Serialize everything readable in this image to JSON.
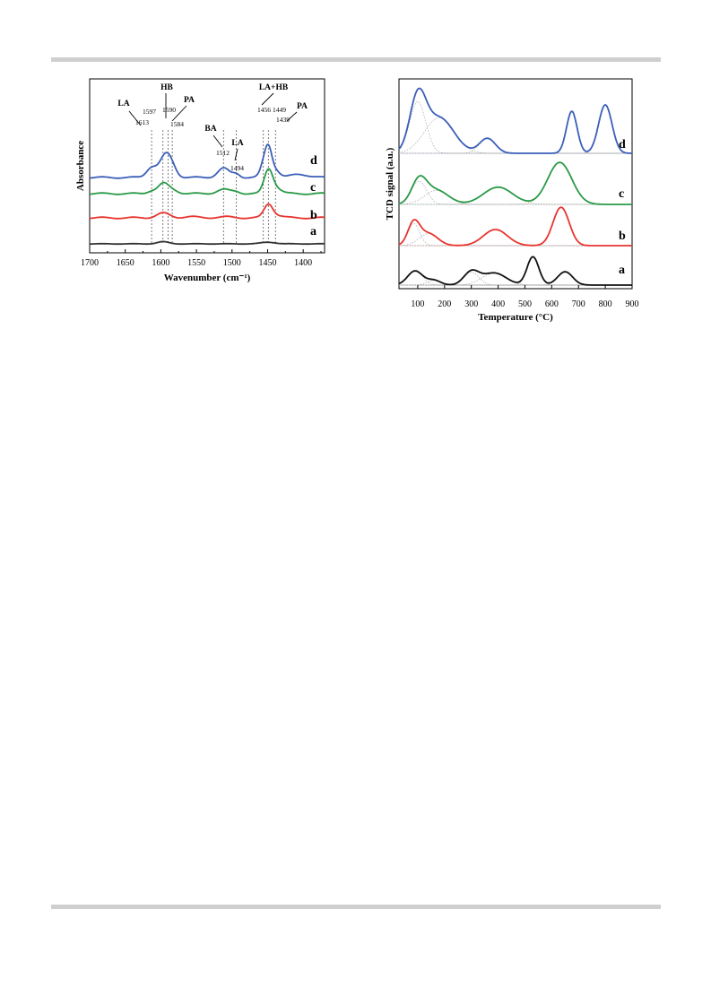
{
  "chart_data": [
    {
      "type": "line",
      "xlabel": "Wavenumber (cm⁻¹)",
      "ylabel": "Absorbance",
      "xlim": [
        1700,
        1370
      ],
      "x_reversed": true,
      "x_ticks": [
        1700,
        1650,
        1600,
        1550,
        1500,
        1450,
        1400
      ],
      "series": [
        {
          "name": "a",
          "color": "#333333",
          "offset": 0.0,
          "peaks": [
            [
              1597,
              0.45,
              8
            ],
            [
              1449,
              0.35,
              10
            ]
          ]
        },
        {
          "name": "b",
          "color": "#e8352f",
          "offset": 2.5,
          "peaks": [
            [
              1597,
              1.0,
              9
            ],
            [
              1560,
              0.25,
              10
            ],
            [
              1510,
              0.2,
              12
            ],
            [
              1449,
              2.6,
              6
            ],
            [
              1440,
              0.6,
              10
            ]
          ]
        },
        {
          "name": "c",
          "color": "#2a9a47",
          "offset": 5.0,
          "peaks": [
            [
              1613,
              0.6,
              6
            ],
            [
              1597,
              2.0,
              7
            ],
            [
              1584,
              0.8,
              8
            ],
            [
              1512,
              0.9,
              9
            ],
            [
              1494,
              0.4,
              6
            ],
            [
              1449,
              4.8,
              6
            ],
            [
              1439,
              1.2,
              8
            ]
          ]
        },
        {
          "name": "d",
          "color": "#3b5fb8",
          "offset": 7.8,
          "peaks": [
            [
              1613,
              2.2,
              7
            ],
            [
              1597,
              2.6,
              7
            ],
            [
              1590,
              2.5,
              7
            ],
            [
              1584,
              1.5,
              7
            ],
            [
              1512,
              2.0,
              8
            ],
            [
              1494,
              0.8,
              5
            ],
            [
              1456,
              2.0,
              5
            ],
            [
              1449,
              6.0,
              5
            ],
            [
              1439,
              1.5,
              6
            ],
            [
              1405,
              0.7,
              12
            ]
          ]
        }
      ],
      "annotations": [
        {
          "label": "LA",
          "wavenumber": 1613
        },
        {
          "label": "HB",
          "wavenumber": 1597
        },
        {
          "label": "PA",
          "wavenumber": 1584
        },
        {
          "label": "BA",
          "wavenumber": 1512
        },
        {
          "label": "LA",
          "wavenumber": 1494
        },
        {
          "label": "LA+HB",
          "wavenumber": 1449
        },
        {
          "label": "PA",
          "wavenumber": 1439
        }
      ],
      "peak_labels": [
        "1613",
        "1597",
        "1590",
        "1584",
        "1512",
        "1494",
        "1456",
        "1449",
        "1439"
      ],
      "curve_labels": [
        "a",
        "b",
        "c",
        "d"
      ]
    },
    {
      "type": "line",
      "xlabel": "Temperature (°C)",
      "ylabel": "TCD signal (a.u.)",
      "xlim": [
        30,
        900
      ],
      "x_ticks": [
        100,
        200,
        300,
        400,
        500,
        600,
        700,
        800,
        900
      ],
      "series": [
        {
          "name": "a",
          "color": "#111111",
          "peaks": [
            [
              90,
              0.35,
              28
            ],
            [
              160,
              0.12,
              25
            ],
            [
              300,
              0.32,
              28
            ],
            [
              385,
              0.3,
              45
            ],
            [
              530,
              0.7,
              22
            ],
            [
              650,
              0.33,
              28
            ]
          ]
        },
        {
          "name": "b",
          "color": "#e8352f",
          "peaks": [
            [
              85,
              0.55,
              22
            ],
            [
              140,
              0.3,
              35
            ],
            [
              390,
              0.4,
              45
            ],
            [
              635,
              0.95,
              30
            ]
          ]
        },
        {
          "name": "c",
          "color": "#2a9a47",
          "peaks": [
            [
              105,
              0.5,
              28
            ],
            [
              170,
              0.3,
              45
            ],
            [
              400,
              0.37,
              55
            ],
            [
              630,
              0.9,
              45
            ]
          ]
        },
        {
          "name": "d",
          "color": "#3b5fb8",
          "peaks": [
            [
              100,
              0.8,
              30
            ],
            [
              180,
              0.55,
              55
            ],
            [
              360,
              0.23,
              30
            ],
            [
              675,
              0.65,
              20
            ],
            [
              800,
              0.75,
              25
            ]
          ]
        }
      ],
      "curve_labels": [
        "a",
        "b",
        "c",
        "d"
      ]
    }
  ]
}
